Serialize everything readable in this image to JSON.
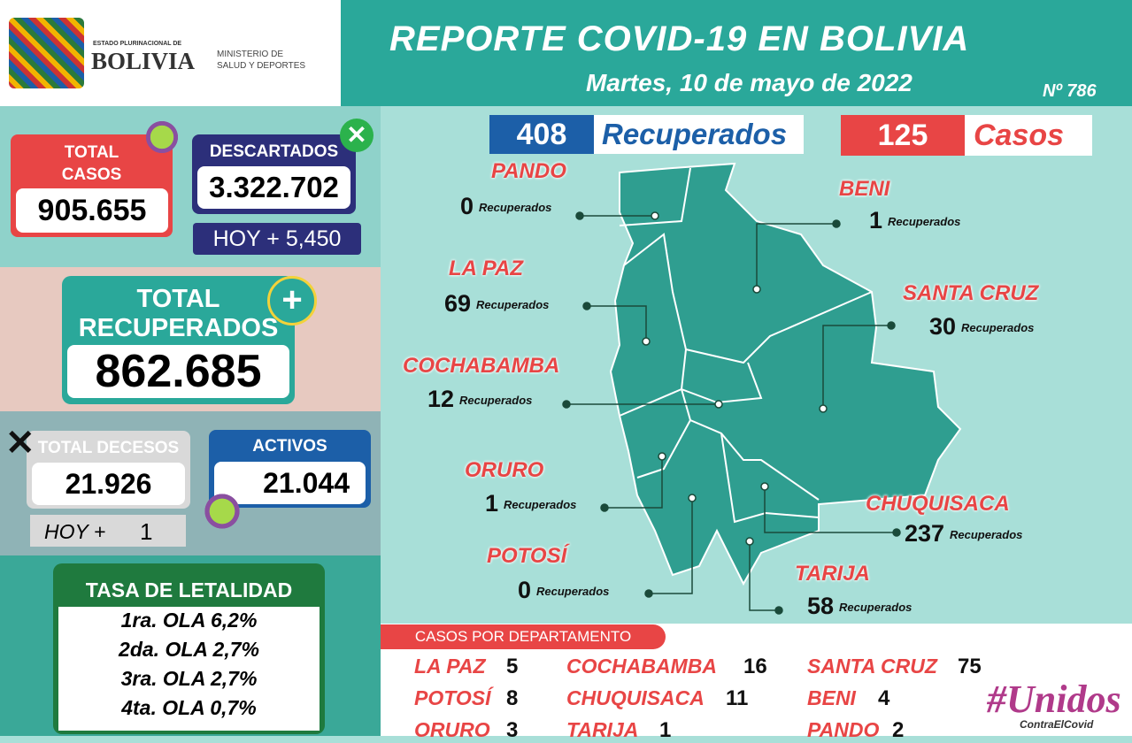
{
  "header": {
    "gov_small": "ESTADO PLURINACIONAL DE",
    "gov_big": "BOLIVIA",
    "ministry_1": "MINISTERIO DE",
    "ministry_2": "SALUD Y DEPORTES",
    "title": "REPORTE COVID-19 EN BOLIVIA",
    "date": "Martes, 10 de mayo de 2022",
    "number": "Nº 786"
  },
  "summary": {
    "total_casos": {
      "label_1": "TOTAL",
      "label_2": "CASOS",
      "value": "905.655"
    },
    "descartados": {
      "label": "DESCARTADOS",
      "value": "3.322.702",
      "today": "HOY + 5,450"
    },
    "recuperados": {
      "label_1": "TOTAL",
      "label_2": "RECUPERADOS",
      "value": "862.685"
    },
    "decesos": {
      "label": "TOTAL DECESOS",
      "value": "21.926",
      "today_label": "HOY +",
      "today_value": "1"
    },
    "activos": {
      "label": "ACTIVOS",
      "value": "21.044"
    }
  },
  "letalidad": {
    "title": "TASA DE LETALIDAD",
    "rows": [
      "1ra. OLA 6,2%",
      "2da. OLA 2,7%",
      "3ra. OLA 2,7%",
      "4ta. OLA 0,7%"
    ]
  },
  "daily": {
    "recuperados_value": "408",
    "recuperados_label": "Recuperados",
    "casos_value": "125",
    "casos_label": "Casos"
  },
  "departments": [
    {
      "name": "PANDO",
      "value": "0",
      "label": "Recuperados"
    },
    {
      "name": "BENI",
      "value": "1",
      "label": "Recuperados"
    },
    {
      "name": "LA PAZ",
      "value": "69",
      "label": "Recuperados"
    },
    {
      "name": "SANTA CRUZ",
      "value": "30",
      "label": "Recuperados"
    },
    {
      "name": "COCHABAMBA",
      "value": "12",
      "label": "Recuperados"
    },
    {
      "name": "ORURO",
      "value": "1",
      "label": "Recuperados"
    },
    {
      "name": "POTOSÍ",
      "value": "0",
      "label": "Recuperados"
    },
    {
      "name": "CHUQUISACA",
      "value": "237",
      "label": "Recuperados"
    },
    {
      "name": "TARIJA",
      "value": "58",
      "label": "Recuperados"
    }
  ],
  "casos_por_departamento": {
    "title": "CASOS POR DEPARTAMENTO",
    "rows": [
      {
        "name": "LA PAZ",
        "value": "5"
      },
      {
        "name": "COCHABAMBA",
        "value": "16"
      },
      {
        "name": "SANTA CRUZ",
        "value": "75"
      },
      {
        "name": "POTOSÍ",
        "value": "8"
      },
      {
        "name": "CHUQUISACA",
        "value": "11"
      },
      {
        "name": "BENI",
        "value": "4"
      },
      {
        "name": "ORURO",
        "value": "3"
      },
      {
        "name": "TARIJA",
        "value": "1"
      },
      {
        "name": "PANDO",
        "value": "2"
      }
    ]
  },
  "footer": {
    "hashtag": "#Unidos",
    "sub": "ContraElCovid"
  }
}
